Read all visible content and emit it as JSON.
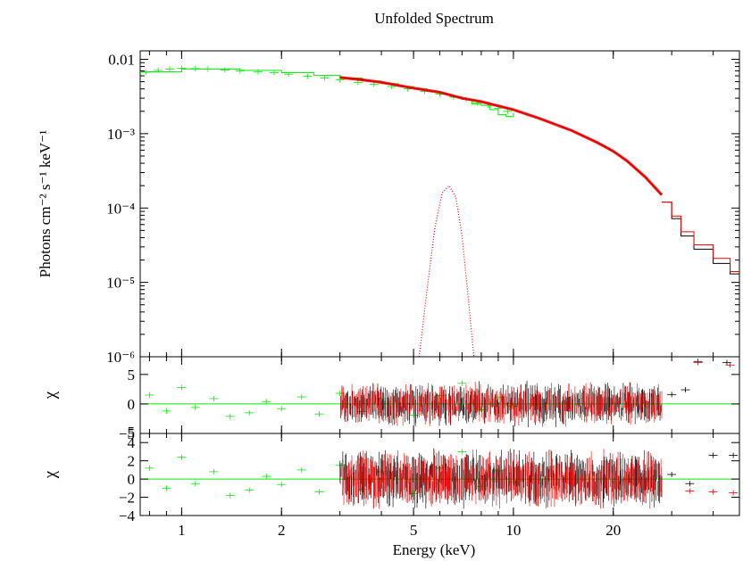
{
  "chart_data": {
    "type": "scatter",
    "title": "Unfolded Spectrum",
    "xlabel": "Energy (keV)",
    "x_scale": "log",
    "xlim": [
      0.75,
      48
    ],
    "x_ticks": [
      {
        "value": 1,
        "label": "1"
      },
      {
        "value": 2,
        "label": "2"
      },
      {
        "value": 5,
        "label": "5"
      },
      {
        "value": 10,
        "label": "10"
      },
      {
        "value": 20,
        "label": "20"
      }
    ],
    "colors": {
      "black": "#000000",
      "red": "#ff0000",
      "green": "#00ee00"
    },
    "panels": [
      {
        "id": "spectrum",
        "ylabel": "Photons cm⁻² s⁻¹ keV⁻¹",
        "y_scale": "log",
        "ylim": [
          1e-06,
          0.013
        ],
        "y_ticks": [
          {
            "value": 0.01,
            "label": "0.01"
          },
          {
            "value": 0.001,
            "label": "10⁻³"
          },
          {
            "value": 0.0001,
            "label": "10⁻⁴"
          },
          {
            "value": 1e-05,
            "label": "10⁻⁵"
          },
          {
            "value": 1e-06,
            "label": "10⁻⁶"
          }
        ],
        "series": [
          {
            "color": "green",
            "style": "points",
            "x": [
              0.78,
              0.85,
              0.92,
              1.0,
              1.1,
              1.2,
              1.35,
              1.5,
              1.7,
              1.9,
              2.1,
              2.4,
              2.7,
              3.0,
              3.4,
              3.8,
              4.3,
              4.8,
              5.4,
              6.0,
              6.6,
              7.2,
              7.8,
              8.4,
              9.0,
              9.6
            ],
            "y": [
              0.0067,
              0.0071,
              0.0074,
              0.0076,
              0.0075,
              0.0074,
              0.0072,
              0.007,
              0.0068,
              0.0066,
              0.0063,
              0.0059,
              0.0056,
              0.0053,
              0.0049,
              0.0046,
              0.0043,
              0.004,
              0.0037,
              0.0034,
              0.0031,
              0.0029,
              0.0026,
              0.0024,
              0.0022,
              0.002
            ]
          },
          {
            "color": "green",
            "style": "step",
            "x": [
              0.75,
              1.0,
              1.5,
              2.0,
              2.5,
              3.0,
              3.5,
              4.0,
              4.5,
              5.0,
              5.5,
              6.0,
              6.5,
              7.0,
              7.5,
              8.0,
              8.5,
              9.0,
              9.5,
              10.0
            ],
            "y": [
              0.0068,
              0.0074,
              0.0071,
              0.0066,
              0.0061,
              0.0056,
              0.0051,
              0.0047,
              0.0043,
              0.004,
              0.0037,
              0.0034,
              0.0031,
              0.0029,
              0.0025,
              0.0024,
              0.0021,
              0.0018,
              0.0017,
              0.0019
            ]
          },
          {
            "color": "red",
            "style": "band",
            "x": [
              3.0,
              3.5,
              4.0,
              5.0,
              6.0,
              7.0,
              8.0,
              10.0,
              12.0,
              15.0,
              18.0,
              20.0,
              22.0,
              25.0,
              28.0
            ],
            "y": [
              0.0057,
              0.0053,
              0.0049,
              0.0041,
              0.0036,
              0.003,
              0.0027,
              0.0021,
              0.0016,
              0.0011,
              0.00075,
              0.00058,
              0.00043,
              0.00026,
              0.00015
            ]
          },
          {
            "color": "black",
            "style": "step",
            "x": [
              28.0,
              30.0,
              32.0,
              35.0,
              40.0,
              45.0,
              48.0
            ],
            "y": [
              0.00012,
              7.2e-05,
              4.2e-05,
              2.8e-05,
              1.8e-05,
              1.3e-05,
              1.3e-05
            ]
          },
          {
            "color": "red",
            "style": "step",
            "x": [
              28.0,
              30.0,
              32.0,
              35.0,
              40.0,
              45.0,
              48.0
            ],
            "y": [
              0.00012,
              7.8e-05,
              4.8e-05,
              3.2e-05,
              2.1e-05,
              1.4e-05,
              1.4e-05
            ]
          },
          {
            "color": "red",
            "style": "dotted",
            "x": [
              5.2,
              5.5,
              5.8,
              6.1,
              6.4,
              6.7,
              7.0,
              7.3,
              7.6
            ],
            "y": [
              1e-06,
              8.5e-06,
              5.5e-05,
              0.00016,
              0.0002,
              0.00014,
              4.3e-05,
              6.5e-06,
              1e-06
            ]
          }
        ]
      },
      {
        "id": "residuals-1",
        "ylabel": "χ",
        "y_scale": "linear",
        "ylim": [
          -5,
          8
        ],
        "y_ticks": [
          {
            "value": 5,
            "label": "5"
          },
          {
            "value": 0,
            "label": "0"
          },
          {
            "value": -5,
            "label": "−5"
          }
        ],
        "zero_line_color": "green",
        "series": [
          {
            "color": "green",
            "style": "points",
            "x": [
              0.8,
              0.9,
              1.0,
              1.1,
              1.25,
              1.4,
              1.6,
              1.8,
              2.0,
              2.3,
              2.6,
              3.0,
              3.5,
              4.0,
              5.0,
              6.0,
              7.0,
              8.0,
              9.0,
              10.0
            ],
            "y": [
              1.5,
              -1.2,
              2.8,
              -0.6,
              0.9,
              -2.1,
              -1.5,
              0.4,
              -0.8,
              1.2,
              -1.7,
              1.8,
              -1.3,
              0.9,
              -1.9,
              1.4,
              3.5,
              -1.0,
              1.1,
              -0.4
            ]
          },
          {
            "color": "black",
            "style": "noise",
            "x": [
              3.0,
              28.0
            ],
            "y_spread": 3.0
          },
          {
            "color": "red",
            "style": "noise",
            "x": [
              3.0,
              28.0
            ],
            "y_spread": 3.0
          },
          {
            "color": "black",
            "style": "points",
            "x": [
              30.0,
              33.0,
              36.0,
              44.0
            ],
            "y": [
              1.6,
              2.4,
              7.2,
              7.0
            ]
          },
          {
            "color": "red",
            "style": "points",
            "x": [
              36.0,
              45.0
            ],
            "y": [
              7.0,
              6.6
            ]
          }
        ]
      },
      {
        "id": "residuals-2",
        "ylabel": "χ",
        "y_scale": "linear",
        "ylim": [
          -4,
          5
        ],
        "y_ticks": [
          {
            "value": 4,
            "label": "4"
          },
          {
            "value": 2,
            "label": "2"
          },
          {
            "value": 0,
            "label": "0"
          },
          {
            "value": -2,
            "label": "−2"
          },
          {
            "value": -4,
            "label": "−4"
          }
        ],
        "top_tick_label": "5",
        "zero_line_color": "green",
        "series": [
          {
            "color": "green",
            "style": "points",
            "x": [
              0.8,
              0.9,
              1.0,
              1.1,
              1.25,
              1.4,
              1.6,
              1.8,
              2.0,
              2.3,
              2.6,
              3.0,
              3.5,
              4.0,
              5.0,
              6.0,
              7.0,
              8.0,
              9.0,
              10.0
            ],
            "y": [
              1.2,
              -1.0,
              2.4,
              -0.5,
              0.8,
              -1.8,
              -1.2,
              0.3,
              -0.6,
              1.0,
              -1.4,
              1.5,
              -1.1,
              0.8,
              -1.6,
              1.2,
              3.0,
              -0.8,
              0.9,
              -0.3
            ]
          },
          {
            "color": "black",
            "style": "noise",
            "x": [
              3.0,
              28.0
            ],
            "y_spread": 2.5
          },
          {
            "color": "red",
            "style": "noise",
            "x": [
              3.0,
              28.0
            ],
            "y_spread": 2.5
          },
          {
            "color": "black",
            "style": "points",
            "x": [
              30.0,
              34.0,
              40.0,
              46.0
            ],
            "y": [
              0.5,
              -0.5,
              2.6,
              2.6
            ]
          },
          {
            "color": "red",
            "style": "points",
            "x": [
              34.0,
              40.0,
              46.0
            ],
            "y": [
              -1.3,
              -1.4,
              -1.5
            ]
          }
        ]
      }
    ]
  }
}
